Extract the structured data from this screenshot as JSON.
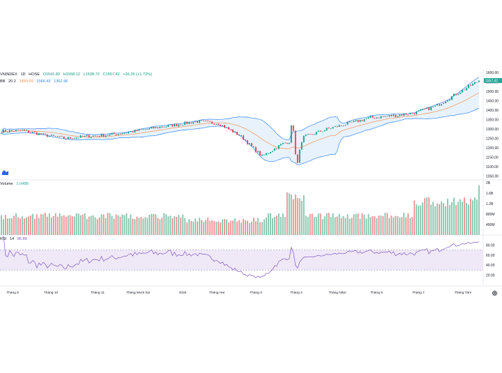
{
  "header": {
    "symbol": "VNINDEX",
    "interval": "1D",
    "exchange": "HOSE",
    "ohlc": {
      "open": "O1541.82",
      "high": "H1558.12",
      "low": "L1538.72",
      "close": "C1557.42",
      "change": "+26.29 (+1.72%)"
    }
  },
  "bb_legend": {
    "name": "BB",
    "params": "20 2",
    "basis": "1459.69",
    "upper": "1566.43",
    "lower": "1352.96"
  },
  "volume_legend": {
    "name": "Volume",
    "value": "1.048B"
  },
  "rsi_legend": {
    "name": "RSI",
    "period": "14",
    "value": "86.88"
  },
  "price_axis": {
    "ticks": [
      "1600.00",
      "1550.00",
      "1500.00",
      "1450.00",
      "1400.00",
      "1350.00",
      "1300.00",
      "1250.00",
      "1200.00",
      "1150.00",
      "1100.00",
      "1050.00"
    ],
    "last_price_label": "1557.42"
  },
  "volume_axis": {
    "ticks": [
      "2B",
      "1.6B",
      "1.2B",
      "800M",
      "400M"
    ]
  },
  "rsi_axis": {
    "ticks": [
      "80.00",
      "60.00",
      "40.00",
      "20.00"
    ]
  },
  "time_axis": {
    "labels": [
      "Tháng 9",
      "Tháng 10",
      "Tháng 11",
      "Tháng Mười hai",
      "2025",
      "Tháng Hai",
      "Tháng 3",
      "Tháng 4",
      "Tháng Năm",
      "Tháng 6",
      "Tháng 7",
      "Tháng Tám"
    ]
  },
  "colors": {
    "up": "#7fc4a9",
    "down": "#f08c8f",
    "bb_band": "#2f86f6",
    "bb_basis": "#f58f4a",
    "bb_fill": "#e8f2fd",
    "rsi_line": "#7e57c2",
    "rsi_fill": "#efe9f7",
    "last_label_bg": "#26a69a"
  },
  "chart_data": {
    "type": "candlestick",
    "title": "",
    "price_ylim": [
      1030,
      1615
    ],
    "volume_ylim": [
      0,
      2000000000
    ],
    "rsi_ylim": [
      0,
      100
    ],
    "rsi_bands": [
      70,
      30
    ],
    "months": [
      {
        "label": "Tháng 9",
        "close": 1280
      },
      {
        "label": "Tháng 10",
        "close": 1282
      },
      {
        "label": "Tháng 11",
        "close": 1240
      },
      {
        "label": "Tháng Mười hai",
        "close": 1265
      },
      {
        "label": "2025",
        "close": 1270
      },
      {
        "label": "Tháng Hai",
        "close": 1300
      },
      {
        "label": "Tháng 3",
        "close": 1320
      },
      {
        "label": "Tháng 4",
        "close": 1230
      },
      {
        "label": "Tháng Năm",
        "close": 1330
      },
      {
        "label": "Tháng 6",
        "close": 1370
      },
      {
        "label": "Tháng 7",
        "close": 1500
      },
      {
        "label": "Tháng Tám",
        "close": 1557.42
      }
    ],
    "last": {
      "open": 1541.82,
      "high": 1558.12,
      "low": 1538.72,
      "close": 1557.42
    },
    "bollinger": {
      "period": 20,
      "mult": 2,
      "basis": 1459.69,
      "upper": 1566.43,
      "lower": 1352.96
    },
    "volume_last": 1048000000,
    "rsi_last": 86.88
  }
}
